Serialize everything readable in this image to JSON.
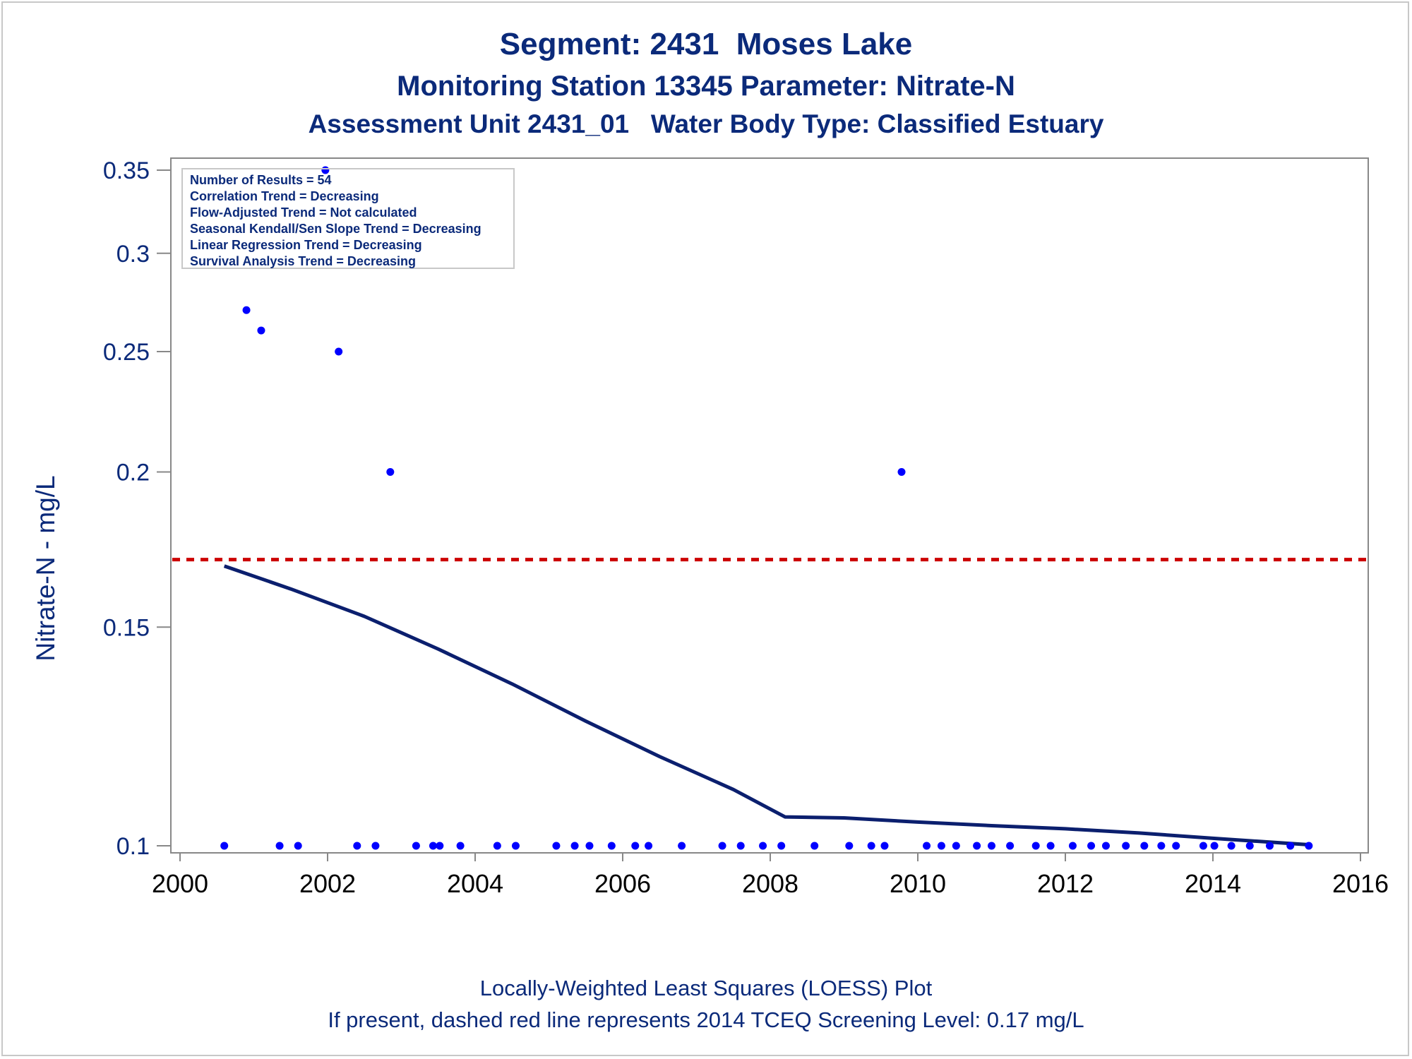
{
  "titles": {
    "line1": "Segment: 2431  Moses Lake",
    "line2": "Monitoring Station 13345 Parameter: Nitrate-N",
    "line3": "Assessment Unit 2431_01   Water Body Type: Classified Estuary"
  },
  "footnotes": {
    "line1": "Locally-Weighted Least Squares (LOESS) Plot",
    "line2": "If present, dashed red line represents 2014 TCEQ Screening Level: 0.17 mg/L"
  },
  "colors": {
    "text": "#0b2a7a",
    "points": "#0000ff",
    "loess": "#0b1f6e",
    "screening": "#cc0000",
    "axis": "#888888"
  },
  "chart_data": {
    "type": "scatter",
    "ylabel": "Nitrate-N - mg/L",
    "xlabel": "",
    "xlim": [
      2000,
      2016
    ],
    "ylim": [
      0.1,
      0.35
    ],
    "y_scale": "log",
    "x_ticks": [
      2000,
      2002,
      2004,
      2006,
      2008,
      2010,
      2012,
      2014,
      2016
    ],
    "y_ticks": [
      0.1,
      0.15,
      0.2,
      0.25,
      0.3,
      0.35
    ],
    "y_tick_labels": [
      "0.1",
      "0.15",
      "0.2",
      "0.25",
      "0.3",
      "0.35"
    ],
    "grid": false,
    "stats_box": {
      "position": "top-left",
      "lines": [
        "Number of Results = 54",
        "Correlation Trend = Decreasing",
        "Flow-Adjusted Trend = Not calculated",
        "Seasonal Kendall/Sen Slope Trend = Decreasing",
        "Linear Regression Trend = Decreasing",
        "Survival Analysis Trend = Decreasing"
      ]
    },
    "screening_level": 0.17,
    "points": [
      {
        "x": 2000.6,
        "y": 0.1
      },
      {
        "x": 2000.9,
        "y": 0.27
      },
      {
        "x": 2001.1,
        "y": 0.26
      },
      {
        "x": 2001.35,
        "y": 0.1
      },
      {
        "x": 2001.6,
        "y": 0.1
      },
      {
        "x": 2001.97,
        "y": 0.35
      },
      {
        "x": 2002.15,
        "y": 0.25
      },
      {
        "x": 2002.4,
        "y": 0.1
      },
      {
        "x": 2002.65,
        "y": 0.1
      },
      {
        "x": 2002.85,
        "y": 0.2
      },
      {
        "x": 2003.2,
        "y": 0.1
      },
      {
        "x": 2003.43,
        "y": 0.1
      },
      {
        "x": 2003.52,
        "y": 0.1
      },
      {
        "x": 2003.8,
        "y": 0.1
      },
      {
        "x": 2004.3,
        "y": 0.1
      },
      {
        "x": 2004.55,
        "y": 0.1
      },
      {
        "x": 2005.1,
        "y": 0.1
      },
      {
        "x": 2005.35,
        "y": 0.1
      },
      {
        "x": 2005.55,
        "y": 0.1
      },
      {
        "x": 2005.85,
        "y": 0.1
      },
      {
        "x": 2006.17,
        "y": 0.1
      },
      {
        "x": 2006.35,
        "y": 0.1
      },
      {
        "x": 2006.8,
        "y": 0.1
      },
      {
        "x": 2007.35,
        "y": 0.1
      },
      {
        "x": 2007.6,
        "y": 0.1
      },
      {
        "x": 2007.9,
        "y": 0.1
      },
      {
        "x": 2008.15,
        "y": 0.1
      },
      {
        "x": 2008.6,
        "y": 0.1
      },
      {
        "x": 2009.07,
        "y": 0.1
      },
      {
        "x": 2009.37,
        "y": 0.1
      },
      {
        "x": 2009.55,
        "y": 0.1
      },
      {
        "x": 2009.78,
        "y": 0.2
      },
      {
        "x": 2010.12,
        "y": 0.1
      },
      {
        "x": 2010.32,
        "y": 0.1
      },
      {
        "x": 2010.52,
        "y": 0.1
      },
      {
        "x": 2010.8,
        "y": 0.1
      },
      {
        "x": 2011.0,
        "y": 0.1
      },
      {
        "x": 2011.25,
        "y": 0.1
      },
      {
        "x": 2011.6,
        "y": 0.1
      },
      {
        "x": 2011.8,
        "y": 0.1
      },
      {
        "x": 2012.1,
        "y": 0.1
      },
      {
        "x": 2012.35,
        "y": 0.1
      },
      {
        "x": 2012.55,
        "y": 0.1
      },
      {
        "x": 2012.82,
        "y": 0.1
      },
      {
        "x": 2013.07,
        "y": 0.1
      },
      {
        "x": 2013.3,
        "y": 0.1
      },
      {
        "x": 2013.5,
        "y": 0.1
      },
      {
        "x": 2013.87,
        "y": 0.1
      },
      {
        "x": 2014.02,
        "y": 0.1
      },
      {
        "x": 2014.25,
        "y": 0.1
      },
      {
        "x": 2014.5,
        "y": 0.1
      },
      {
        "x": 2014.77,
        "y": 0.1
      },
      {
        "x": 2015.05,
        "y": 0.1
      },
      {
        "x": 2015.3,
        "y": 0.1
      }
    ],
    "loess_line": [
      {
        "x": 2000.6,
        "y": 0.168
      },
      {
        "x": 2001.5,
        "y": 0.161
      },
      {
        "x": 2002.5,
        "y": 0.153
      },
      {
        "x": 2003.5,
        "y": 0.144
      },
      {
        "x": 2004.5,
        "y": 0.135
      },
      {
        "x": 2005.5,
        "y": 0.126
      },
      {
        "x": 2006.5,
        "y": 0.118
      },
      {
        "x": 2007.5,
        "y": 0.111
      },
      {
        "x": 2008.2,
        "y": 0.1055
      },
      {
        "x": 2009.0,
        "y": 0.1053
      },
      {
        "x": 2010.0,
        "y": 0.1045
      },
      {
        "x": 2011.0,
        "y": 0.1038
      },
      {
        "x": 2012.0,
        "y": 0.1032
      },
      {
        "x": 2013.0,
        "y": 0.1024
      },
      {
        "x": 2014.0,
        "y": 0.1014
      },
      {
        "x": 2015.3,
        "y": 0.1002
      }
    ]
  }
}
